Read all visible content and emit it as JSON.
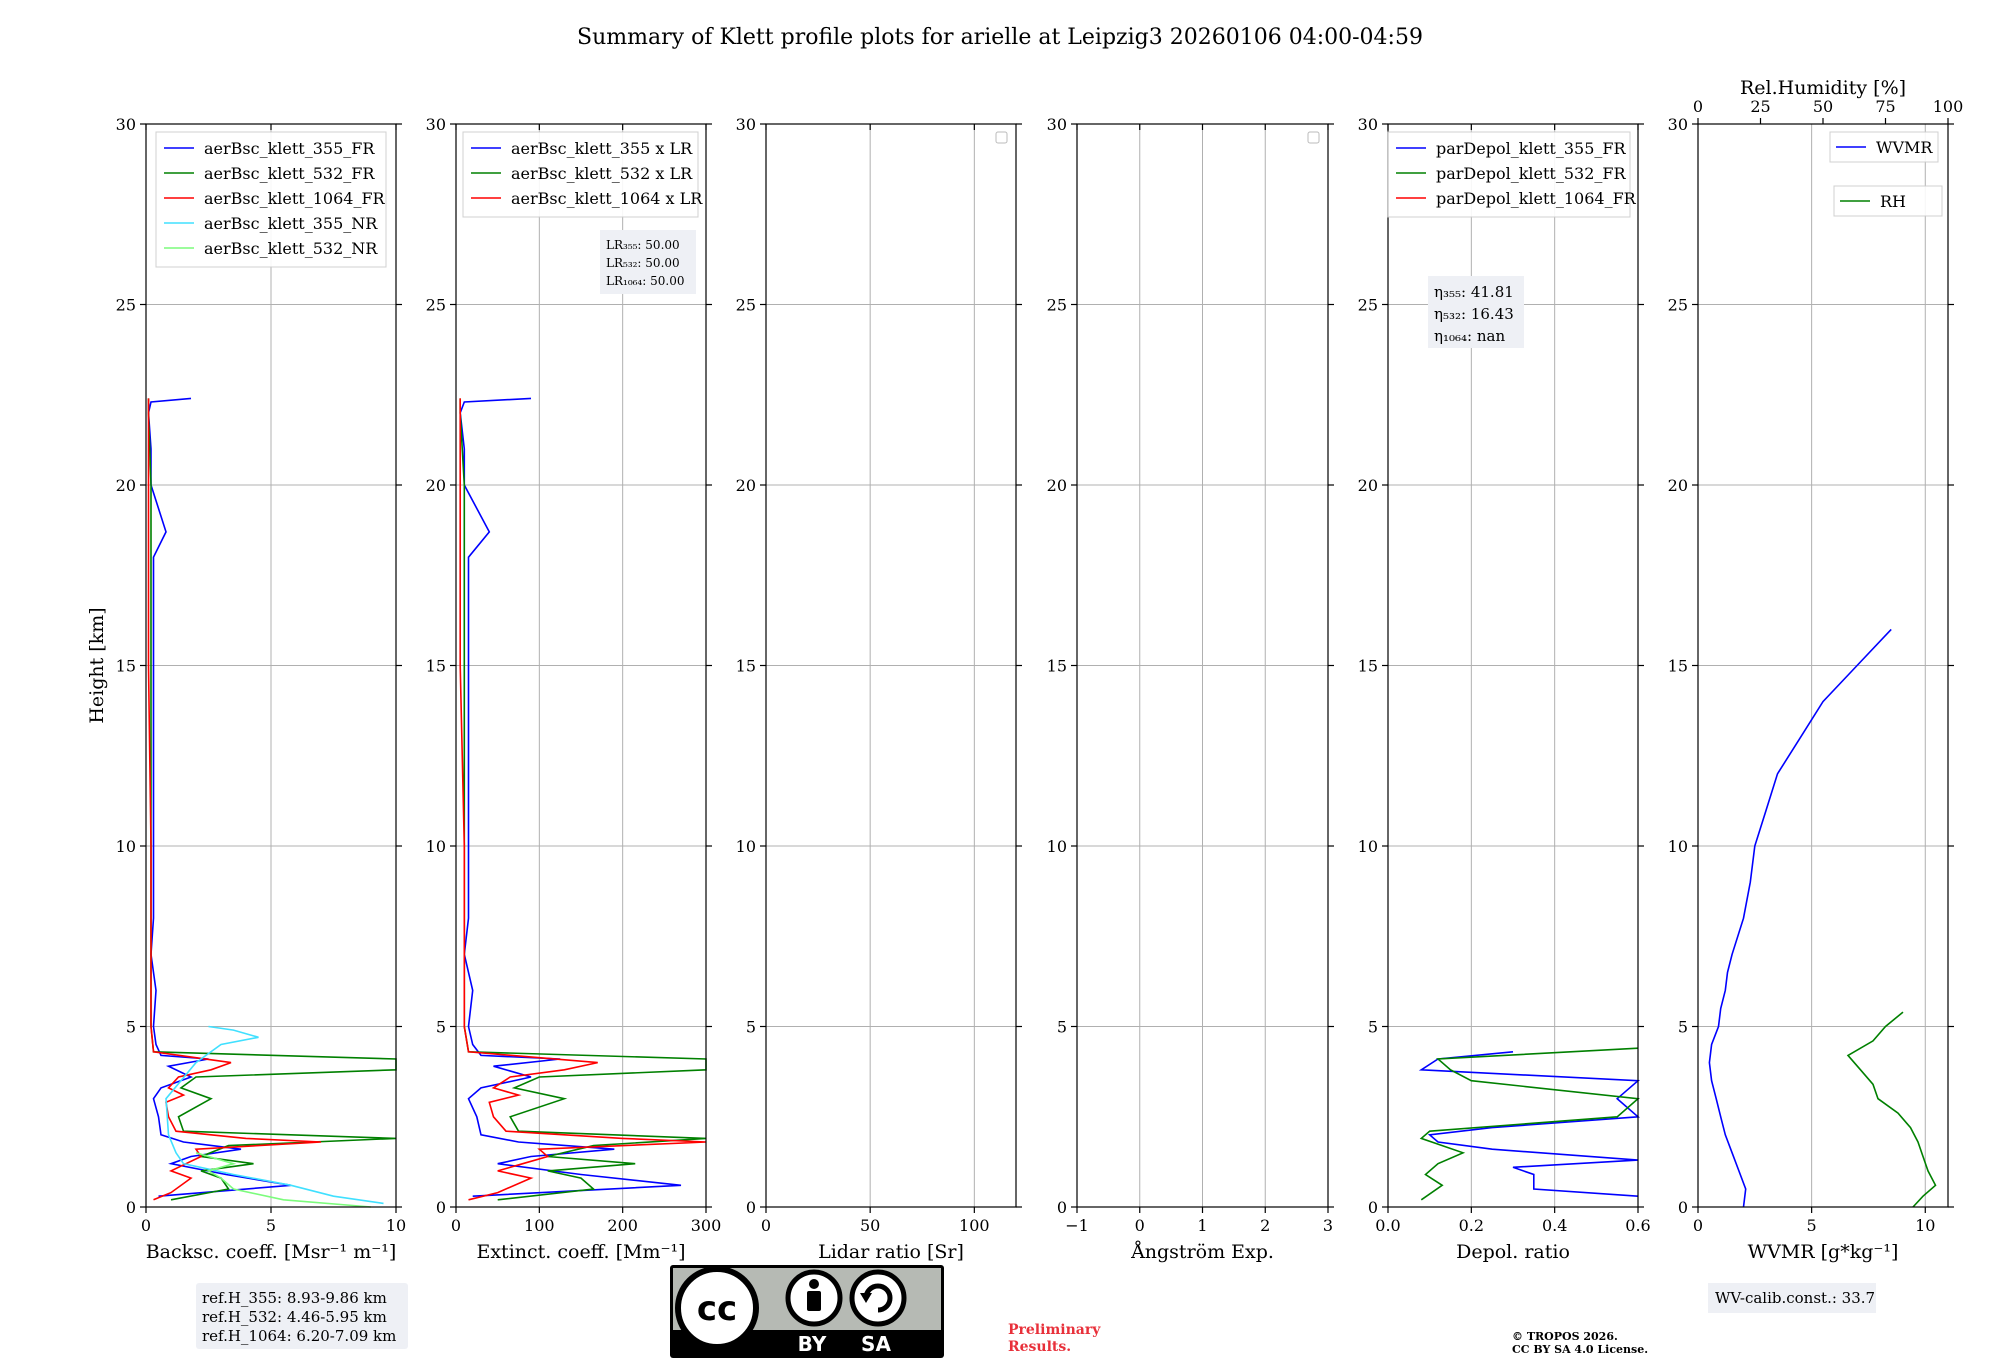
{
  "title": "Summary of Klett profile plots for arielle at Leipzig3 20260106 04:00-04:59",
  "colors": {
    "b355": "#0000ff",
    "b532": "#008000",
    "b1064": "#ff0000",
    "b355nr": "#40e0ff",
    "b532nr": "#7cfc7c",
    "wvmr": "#0000ff",
    "rh": "#008000"
  },
  "chart_data": [
    {
      "id": "bsc",
      "type": "line",
      "xlabel": "Backsc. coeff. [Msr⁻¹ m⁻¹]",
      "ylabel": "Height [km]",
      "xlim": [
        0,
        10
      ],
      "ylim": [
        0,
        30
      ],
      "xticks": [
        0,
        5,
        10
      ],
      "xtick_labels": [
        "0",
        "5",
        "10"
      ],
      "yticks": [
        0,
        5,
        10,
        15,
        20,
        25,
        30
      ],
      "ytick_labels": [
        "0",
        "5",
        "10",
        "15",
        "20",
        "25",
        "30"
      ],
      "legend": [
        "aerBsc_klett_355_FR",
        "aerBsc_klett_532_FR",
        "aerBsc_klett_1064_FR",
        "aerBsc_klett_355_NR",
        "aerBsc_klett_532_NR"
      ],
      "series": [
        {
          "name": "aerBsc_klett_355_FR",
          "color": "b355",
          "h": [
            0.3,
            0.6,
            0.9,
            1.2,
            1.4,
            1.6,
            1.8,
            2.0,
            2.5,
            3.0,
            3.3,
            3.6,
            3.9,
            4.1,
            4.2,
            4.5,
            5.0,
            6.0,
            7.0,
            8.0,
            10.0,
            12.0,
            15.0,
            18.0,
            18.7,
            20.0,
            21.0,
            22.0,
            22.3,
            22.4
          ],
          "v": [
            0.5,
            5.8,
            3.2,
            1.0,
            1.8,
            3.8,
            1.5,
            0.6,
            0.5,
            0.3,
            0.6,
            1.8,
            0.9,
            2.5,
            0.6,
            0.4,
            0.3,
            0.4,
            0.2,
            0.3,
            0.3,
            0.3,
            0.3,
            0.3,
            0.8,
            0.2,
            0.2,
            0.1,
            0.2,
            1.8
          ]
        },
        {
          "name": "aerBsc_klett_532_FR",
          "color": "b532",
          "h": [
            0.2,
            0.5,
            0.8,
            1.0,
            1.2,
            1.4,
            1.7,
            1.9,
            2.1,
            2.5,
            3.0,
            3.3,
            3.6,
            3.8,
            4.1,
            4.3,
            5.0,
            8.0,
            12.0,
            16.0,
            20.0,
            22.0,
            22.4
          ],
          "v": [
            1.0,
            3.3,
            3.0,
            2.2,
            4.3,
            2.2,
            3.3,
            10.0,
            1.5,
            1.3,
            2.6,
            1.4,
            2.0,
            10.0,
            10.0,
            0.3,
            0.2,
            0.2,
            0.2,
            0.2,
            0.2,
            0.1,
            0.1
          ]
        },
        {
          "name": "aerBsc_klett_1064_FR",
          "color": "b1064",
          "h": [
            0.2,
            0.4,
            0.8,
            1.0,
            1.2,
            1.4,
            1.6,
            1.8,
            1.9,
            2.1,
            2.5,
            2.9,
            3.1,
            3.3,
            3.6,
            3.8,
            4.0,
            4.3,
            5.0,
            10.0,
            15.0,
            20.0,
            22.4
          ],
          "v": [
            0.3,
            1.0,
            1.8,
            1.0,
            1.6,
            2.2,
            2.0,
            7.0,
            4.0,
            1.2,
            0.9,
            0.8,
            1.5,
            0.9,
            1.3,
            2.6,
            3.4,
            0.3,
            0.2,
            0.2,
            0.1,
            0.1,
            0.1
          ]
        },
        {
          "name": "aerBsc_klett_355_NR",
          "color": "b355nr",
          "h": [
            0.1,
            0.3,
            0.6,
            0.9,
            1.2,
            1.5,
            2.0,
            3.0,
            4.0,
            4.5,
            4.7,
            4.9,
            5.0
          ],
          "v": [
            9.5,
            7.5,
            5.8,
            3.5,
            1.5,
            1.2,
            0.9,
            0.8,
            2.0,
            3.0,
            4.5,
            3.5,
            2.5
          ]
        },
        {
          "name": "aerBsc_klett_532_NR",
          "color": "b532nr",
          "h": [
            0.0,
            0.2,
            0.5,
            0.8,
            1.0,
            1.2,
            1.5
          ],
          "v": [
            9.0,
            5.5,
            3.5,
            3.0,
            2.5,
            3.5,
            2.0
          ]
        }
      ]
    },
    {
      "id": "ext",
      "type": "line",
      "xlabel": "Extinct. coeff. [Mm⁻¹]",
      "xlim": [
        0,
        300
      ],
      "ylim": [
        0,
        30
      ],
      "xticks": [
        0,
        100,
        200,
        300
      ],
      "xtick_labels": [
        "0",
        "100",
        "200",
        "300"
      ],
      "yticks": [
        0,
        5,
        10,
        15,
        20,
        25,
        30
      ],
      "ytick_labels": [
        "0",
        "5",
        "10",
        "15",
        "20",
        "25",
        "30"
      ],
      "legend": [
        "aerBsc_klett_355 x LR",
        "aerBsc_klett_532 x LR",
        "aerBsc_klett_1064 x LR"
      ],
      "lr_lines": [
        "LR₃₅₅: 50.00",
        "LR₅₃₂: 50.00",
        "LR₁₀₆₄: 50.00"
      ],
      "series": [
        {
          "name": "aerBsc_klett_355 x LR",
          "color": "b355",
          "h": [
            0.3,
            0.6,
            0.9,
            1.2,
            1.4,
            1.6,
            1.8,
            2.0,
            2.5,
            3.0,
            3.3,
            3.6,
            3.9,
            4.1,
            4.2,
            4.5,
            5.0,
            6.0,
            7.0,
            8.0,
            10.0,
            12.0,
            15.0,
            18.0,
            18.7,
            20.0,
            21.0,
            22.0,
            22.3,
            22.4
          ],
          "v": [
            20,
            270,
            150,
            50,
            90,
            190,
            75,
            30,
            25,
            15,
            30,
            90,
            45,
            125,
            30,
            20,
            15,
            20,
            10,
            15,
            15,
            15,
            15,
            15,
            40,
            10,
            10,
            5,
            10,
            90
          ]
        },
        {
          "name": "aerBsc_klett_532 x LR",
          "color": "b532",
          "h": [
            0.2,
            0.5,
            0.8,
            1.0,
            1.2,
            1.4,
            1.7,
            1.9,
            2.1,
            2.5,
            3.0,
            3.3,
            3.6,
            3.8,
            4.1,
            4.3,
            5.0,
            8.0,
            12.0,
            16.0,
            20.0,
            22.0,
            22.4
          ],
          "v": [
            50,
            165,
            150,
            110,
            215,
            110,
            165,
            300,
            75,
            65,
            130,
            70,
            100,
            300,
            300,
            15,
            10,
            10,
            10,
            10,
            10,
            5,
            5
          ]
        },
        {
          "name": "aerBsc_klett_1064 x LR",
          "color": "b1064",
          "h": [
            0.2,
            0.4,
            0.8,
            1.0,
            1.2,
            1.4,
            1.6,
            1.8,
            1.9,
            2.1,
            2.5,
            2.9,
            3.1,
            3.3,
            3.6,
            3.8,
            4.0,
            4.3,
            5.0,
            10.0,
            15.0,
            20.0,
            22.4
          ],
          "v": [
            15,
            50,
            90,
            50,
            80,
            110,
            100,
            300,
            200,
            60,
            45,
            40,
            75,
            45,
            65,
            130,
            170,
            15,
            10,
            10,
            5,
            5,
            5
          ]
        }
      ]
    },
    {
      "id": "lr",
      "type": "line",
      "xlabel": "Lidar ratio [Sr]",
      "xlim": [
        0,
        120
      ],
      "ylim": [
        0,
        30
      ],
      "xticks": [
        0,
        50,
        100
      ],
      "xtick_labels": [
        "0",
        "50",
        "100"
      ],
      "yticks": [
        0,
        5,
        10,
        15,
        20,
        25,
        30
      ],
      "ytick_labels": [
        "0",
        "5",
        "10",
        "15",
        "20",
        "25",
        "30"
      ],
      "series": []
    },
    {
      "id": "ang",
      "type": "line",
      "xlabel": "Ångström Exp.",
      "xlim": [
        -1,
        3
      ],
      "ylim": [
        0,
        30
      ],
      "xticks": [
        -1,
        0,
        1,
        2,
        3
      ],
      "xtick_labels": [
        "−1",
        "0",
        "1",
        "2",
        "3"
      ],
      "yticks": [
        0,
        5,
        10,
        15,
        20,
        25,
        30
      ],
      "ytick_labels": [
        "0",
        "5",
        "10",
        "15",
        "20",
        "25",
        "30"
      ],
      "series": []
    },
    {
      "id": "depol",
      "type": "line",
      "xlabel": "Depol. ratio",
      "xlim": [
        0,
        0.6
      ],
      "ylim": [
        0,
        30
      ],
      "xticks": [
        0,
        0.2,
        0.4,
        0.6
      ],
      "xtick_labels": [
        "0.0",
        "0.2",
        "0.4",
        "0.6"
      ],
      "yticks": [
        0,
        5,
        10,
        15,
        20,
        25,
        30
      ],
      "ytick_labels": [
        "0",
        "5",
        "10",
        "15",
        "20",
        "25",
        "30"
      ],
      "legend": [
        "parDepol_klett_355_FR",
        "parDepol_klett_532_FR",
        "parDepol_klett_1064_FR"
      ],
      "eta_lines": [
        "η₃₅₅: 41.81",
        "η₅₃₂: 16.43",
        "η₁₀₆₄: nan"
      ],
      "series": [
        {
          "name": "parDepol_klett_355_FR",
          "color": "b355",
          "h": [
            0.3,
            0.5,
            0.9,
            1.1,
            1.3,
            1.6,
            1.8,
            2.0,
            2.2,
            2.5,
            3.0,
            3.5,
            3.8,
            4.1,
            4.3
          ],
          "v": [
            0.6,
            0.35,
            0.35,
            0.3,
            0.6,
            0.25,
            0.12,
            0.1,
            0.25,
            0.6,
            0.55,
            0.6,
            0.08,
            0.12,
            0.3
          ]
        },
        {
          "name": "parDepol_klett_532_FR",
          "color": "b532",
          "h": [
            0.2,
            0.6,
            0.9,
            1.2,
            1.5,
            1.9,
            2.1,
            2.5,
            3.0,
            3.5,
            3.8,
            4.1,
            4.4
          ],
          "v": [
            0.08,
            0.13,
            0.09,
            0.12,
            0.18,
            0.08,
            0.1,
            0.55,
            0.6,
            0.2,
            0.15,
            0.12,
            0.6
          ]
        }
      ]
    },
    {
      "id": "wv",
      "type": "line",
      "xlabel": "WVMR [g*kg⁻¹]",
      "xlim": [
        0,
        11
      ],
      "ylim": [
        0,
        30
      ],
      "xticks": [
        0,
        5,
        10
      ],
      "xtick_labels": [
        "0",
        "5",
        "10"
      ],
      "yticks": [
        0,
        5,
        10,
        15,
        20,
        25,
        30
      ],
      "ytick_labels": [
        "0",
        "5",
        "10",
        "15",
        "20",
        "25",
        "30"
      ],
      "top_xlabel": "Rel.Humidity [%]",
      "top_xlim": [
        0,
        100
      ],
      "top_xticks": [
        0,
        25,
        50,
        75,
        100
      ],
      "top_xtick_labels": [
        "0",
        "25",
        "50",
        "75",
        "100"
      ],
      "legend": [
        "WVMR",
        "RH"
      ],
      "wv_calib": "WV-calib.const.: 33.7",
      "series": [
        {
          "name": "WVMR",
          "color": "wvmr",
          "h": [
            0.0,
            0.5,
            1.0,
            1.5,
            2.0,
            2.5,
            3.0,
            3.5,
            4.0,
            4.5,
            5.0,
            5.5,
            6.0,
            6.5,
            7.0,
            8.0,
            9.0,
            10.0,
            11.0,
            12.0,
            13.0,
            14.0,
            15.0,
            16.0
          ],
          "v": [
            2.0,
            2.1,
            1.8,
            1.5,
            1.2,
            1.0,
            0.8,
            0.6,
            0.5,
            0.6,
            0.9,
            1.0,
            1.2,
            1.3,
            1.5,
            2.0,
            2.3,
            2.5,
            3.0,
            3.5,
            4.5,
            5.5,
            7.0,
            8.5
          ]
        },
        {
          "name": "RH",
          "color": "rh",
          "h": [
            0.0,
            0.3,
            0.6,
            1.0,
            1.4,
            1.8,
            2.2,
            2.6,
            3.0,
            3.4,
            3.8,
            4.2,
            4.6,
            5.0,
            5.4
          ],
          "v": [
            86,
            90,
            95,
            92,
            90,
            88,
            85,
            80,
            72,
            70,
            65,
            60,
            70,
            75,
            82
          ]
        }
      ]
    }
  ],
  "ref_lines": [
    "ref.H_355: 8.93-9.86 km",
    "ref.H_532: 4.46-5.95 km",
    "ref.H_1064: 6.20-7.09 km"
  ],
  "license_badge": {
    "cc": "cc",
    "by": "BY",
    "sa": "SA"
  },
  "preliminary": [
    "Preliminary",
    "Results."
  ],
  "copyright": [
    "© TROPOS 2026.",
    "CC BY SA 4.0 License."
  ]
}
